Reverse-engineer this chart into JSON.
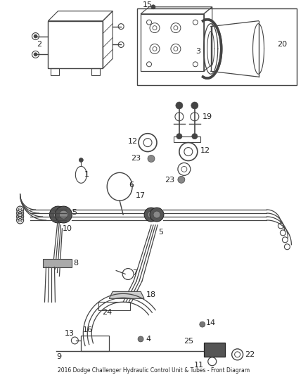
{
  "bg_color": "#ffffff",
  "lc": "#444444",
  "tc": "#222222",
  "figsize": [
    4.38,
    5.33
  ],
  "dpi": 100
}
